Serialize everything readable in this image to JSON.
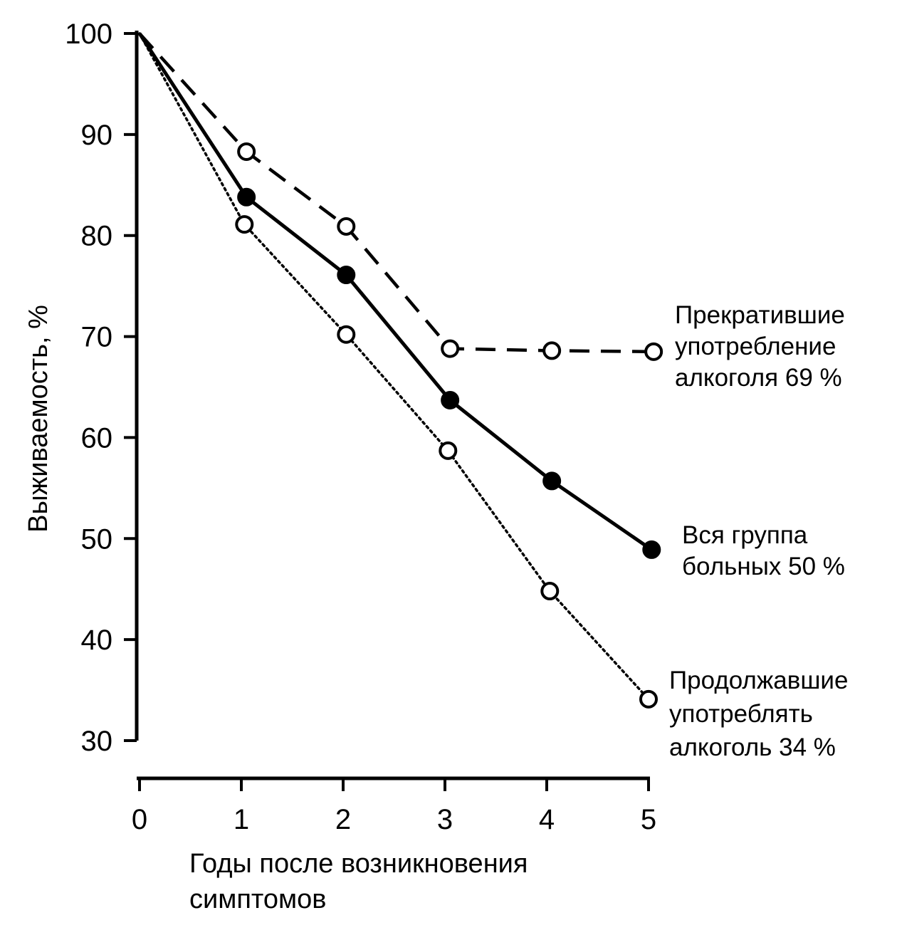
{
  "chart_data": {
    "type": "line",
    "ylabel": "Выживаемость, %",
    "xlabel_lines": [
      "Годы после возникновения",
      "симптомов"
    ],
    "x_ticks": [
      0,
      1,
      2,
      3,
      4,
      5
    ],
    "y_ticks": [
      30,
      40,
      50,
      60,
      70,
      80,
      90,
      100
    ],
    "xlim": [
      0,
      5
    ],
    "ylim": [
      30,
      100
    ],
    "grid": false,
    "series": [
      {
        "key": "stopped",
        "label_lines": [
          "Прекратившие",
          "употребление",
          "алкоголя 69 %"
        ],
        "line_style": "dashed",
        "marker": "open-circle",
        "color": "#000000",
        "points": [
          [
            0,
            100
          ],
          [
            1.05,
            88.3
          ],
          [
            2.03,
            80.9
          ],
          [
            3.05,
            68.8
          ],
          [
            4.05,
            68.6
          ],
          [
            5.05,
            68.5
          ]
        ]
      },
      {
        "key": "all",
        "label_lines": [
          "Вся группа",
          "больных 50 %"
        ],
        "line_style": "solid",
        "marker": "filled-circle",
        "color": "#000000",
        "points": [
          [
            0,
            100
          ],
          [
            1.05,
            83.8
          ],
          [
            2.03,
            76.1
          ],
          [
            3.05,
            63.7
          ],
          [
            4.05,
            55.7
          ],
          [
            5.03,
            48.9
          ]
        ]
      },
      {
        "key": "continued",
        "label_lines": [
          "Продолжавшие",
          "употреблять",
          "алкоголь 34 %"
        ],
        "line_style": "dotted",
        "marker": "open-circle",
        "color": "#000000",
        "points": [
          [
            0,
            100
          ],
          [
            1.03,
            81.1
          ],
          [
            2.03,
            70.2
          ],
          [
            3.03,
            58.7
          ],
          [
            4.03,
            44.8
          ],
          [
            5.0,
            34.1
          ]
        ]
      }
    ]
  }
}
